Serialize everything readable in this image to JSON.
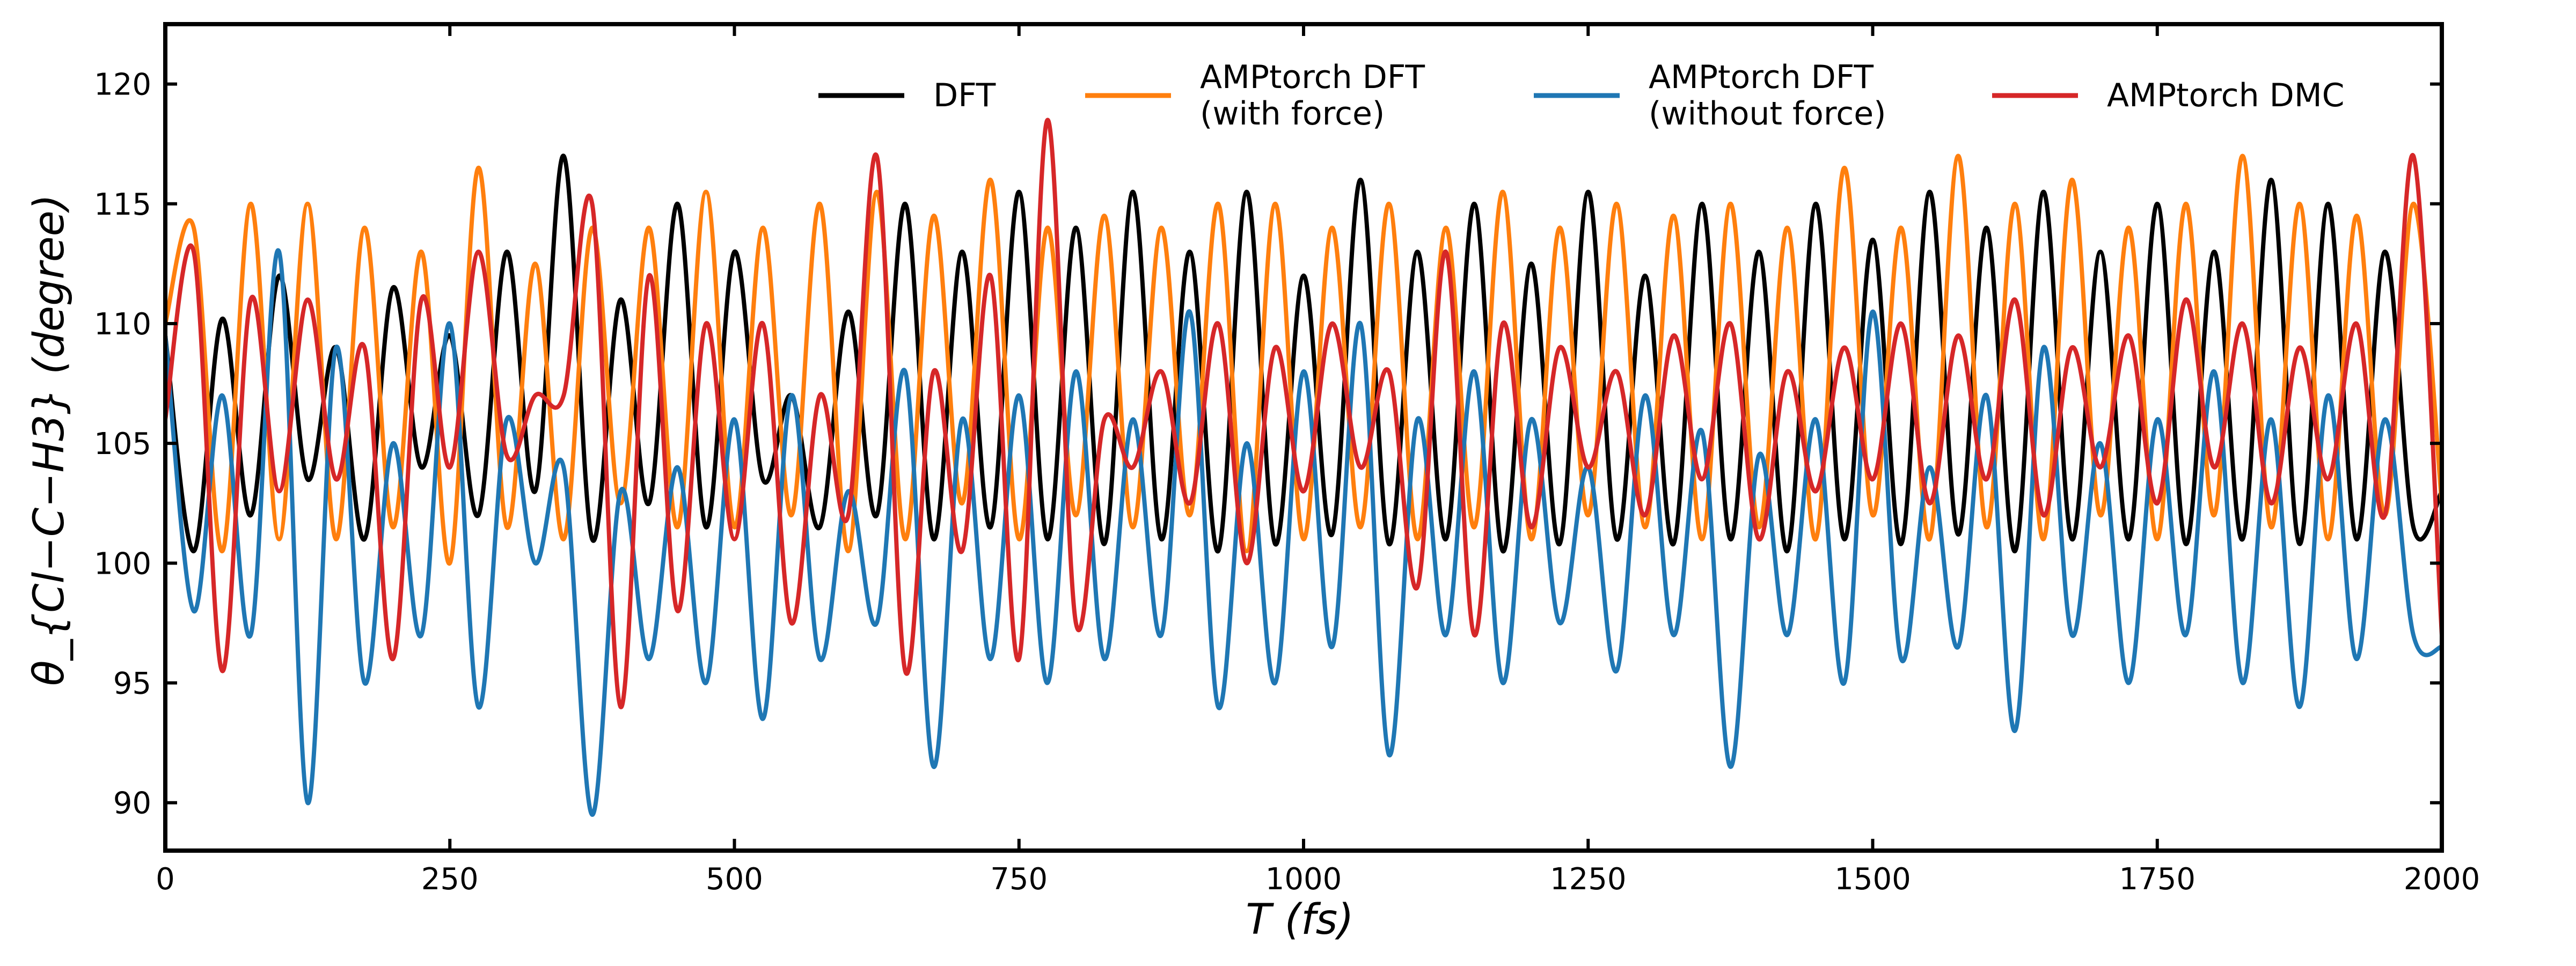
{
  "chart_data": {
    "type": "line",
    "xlabel": "T (fs)",
    "ylabel": "θ_{Cl−C−H3} (degree)",
    "xlim": [
      0,
      2000
    ],
    "ylim": [
      88,
      122.5
    ],
    "xticks": [
      0,
      250,
      500,
      750,
      1000,
      1250,
      1500,
      1750,
      2000
    ],
    "yticks": [
      90,
      95,
      100,
      105,
      110,
      115,
      120
    ],
    "grid": false,
    "legend": {
      "position": "top-right",
      "columns": 4,
      "entries": [
        {
          "lines": [
            "DFT"
          ],
          "color": "#000000"
        },
        {
          "lines": [
            "AMPtorch DFT",
            "(with force)"
          ],
          "color": "#ff7f0e"
        },
        {
          "lines": [
            "AMPtorch DFT",
            "(without force)"
          ],
          "color": "#1f77b4"
        },
        {
          "lines": [
            "AMPtorch DMC"
          ],
          "color": "#d62728"
        }
      ]
    },
    "series": [
      {
        "name": "DFT",
        "color": "#000000",
        "x": [
          0,
          25,
          50,
          75,
          100,
          125,
          150,
          175,
          200,
          225,
          250,
          275,
          300,
          325,
          350,
          375,
          400,
          425,
          450,
          475,
          500,
          525,
          550,
          575,
          600,
          625,
          650,
          675,
          700,
          725,
          750,
          775,
          800,
          825,
          850,
          875,
          900,
          925,
          950,
          975,
          1000,
          1025,
          1050,
          1075,
          1100,
          1125,
          1150,
          1175,
          1200,
          1225,
          1250,
          1275,
          1300,
          1325,
          1350,
          1375,
          1400,
          1425,
          1450,
          1475,
          1500,
          1525,
          1550,
          1575,
          1600,
          1625,
          1650,
          1675,
          1700,
          1725,
          1750,
          1775,
          1800,
          1825,
          1850,
          1875,
          1900,
          1925,
          1950,
          1975,
          2000
        ],
        "y": [
          109.5,
          100.5,
          110.2,
          102.0,
          112.0,
          103.5,
          109.0,
          101.0,
          111.5,
          104.0,
          109.5,
          102.0,
          113.0,
          103.0,
          117.0,
          101.0,
          111.0,
          102.5,
          115.0,
          101.5,
          113.0,
          103.5,
          107.0,
          101.5,
          110.5,
          102.0,
          115.0,
          101.0,
          113.0,
          101.5,
          115.5,
          101.0,
          114.0,
          100.8,
          115.5,
          101.0,
          113.0,
          100.5,
          115.5,
          100.8,
          112.0,
          101.2,
          116.0,
          100.8,
          113.0,
          101.0,
          115.0,
          100.5,
          112.5,
          100.8,
          115.5,
          101.0,
          112.0,
          100.8,
          115.0,
          101.0,
          113.0,
          100.5,
          115.0,
          101.0,
          113.5,
          100.8,
          115.5,
          101.2,
          114.0,
          100.5,
          115.5,
          101.0,
          113.0,
          101.0,
          115.0,
          100.8,
          113.0,
          101.0,
          116.0,
          100.8,
          115.0,
          101.0,
          113.0,
          101.5,
          103.0
        ]
      },
      {
        "name": "AMPtorch DFT (with force)",
        "color": "#ff7f0e",
        "x": [
          0,
          25,
          50,
          75,
          100,
          125,
          150,
          175,
          200,
          225,
          250,
          275,
          300,
          325,
          350,
          375,
          400,
          425,
          450,
          475,
          500,
          525,
          550,
          575,
          600,
          625,
          650,
          675,
          700,
          725,
          750,
          775,
          800,
          825,
          850,
          875,
          900,
          925,
          950,
          975,
          1000,
          1025,
          1050,
          1075,
          1100,
          1125,
          1150,
          1175,
          1200,
          1225,
          1250,
          1275,
          1300,
          1325,
          1350,
          1375,
          1400,
          1425,
          1450,
          1475,
          1500,
          1525,
          1550,
          1575,
          1600,
          1625,
          1650,
          1675,
          1700,
          1725,
          1750,
          1775,
          1800,
          1825,
          1850,
          1875,
          1900,
          1925,
          1950,
          1975,
          2000
        ],
        "y": [
          110.0,
          114.0,
          100.5,
          115.0,
          101.0,
          115.0,
          101.0,
          114.0,
          101.5,
          113.0,
          100.0,
          116.5,
          101.5,
          112.5,
          101.0,
          114.0,
          102.5,
          114.0,
          101.5,
          115.5,
          101.5,
          114.0,
          102.0,
          115.0,
          100.5,
          115.5,
          101.0,
          114.5,
          102.5,
          116.0,
          101.0,
          114.0,
          102.0,
          114.5,
          101.5,
          114.0,
          102.0,
          115.0,
          100.5,
          115.0,
          101.0,
          114.0,
          101.5,
          115.0,
          101.0,
          114.0,
          101.5,
          115.5,
          101.0,
          114.0,
          102.0,
          115.0,
          101.5,
          114.5,
          101.0,
          115.0,
          101.5,
          114.0,
          101.0,
          116.5,
          102.0,
          114.0,
          101.0,
          117.0,
          101.5,
          115.0,
          101.0,
          116.0,
          102.0,
          114.0,
          101.0,
          115.0,
          102.0,
          117.0,
          101.5,
          115.0,
          101.0,
          114.5,
          102.0,
          115.0,
          102.5
        ]
      },
      {
        "name": "AMPtorch DFT (without force)",
        "color": "#1f77b4",
        "x": [
          0,
          25,
          50,
          75,
          100,
          125,
          150,
          175,
          200,
          225,
          250,
          275,
          300,
          325,
          350,
          375,
          400,
          425,
          450,
          475,
          500,
          525,
          550,
          575,
          600,
          625,
          650,
          675,
          700,
          725,
          750,
          775,
          800,
          825,
          850,
          875,
          900,
          925,
          950,
          975,
          1000,
          1025,
          1050,
          1075,
          1100,
          1125,
          1150,
          1175,
          1200,
          1225,
          1250,
          1275,
          1300,
          1325,
          1350,
          1375,
          1400,
          1425,
          1450,
          1475,
          1500,
          1525,
          1550,
          1575,
          1600,
          1625,
          1650,
          1675,
          1700,
          1725,
          1750,
          1775,
          1800,
          1825,
          1850,
          1875,
          1900,
          1925,
          1950,
          1975,
          2000
        ],
        "y": [
          109.5,
          98.0,
          107.0,
          97.0,
          113.0,
          90.0,
          109.0,
          95.0,
          105.0,
          97.0,
          110.0,
          94.0,
          106.0,
          100.0,
          104.0,
          89.5,
          103.0,
          96.0,
          104.0,
          95.0,
          106.0,
          93.5,
          107.0,
          96.0,
          103.0,
          97.5,
          108.0,
          91.5,
          106.0,
          96.0,
          107.0,
          95.0,
          108.0,
          96.0,
          106.0,
          97.0,
          110.5,
          94.0,
          105.0,
          95.0,
          108.0,
          96.5,
          110.0,
          92.0,
          106.0,
          97.0,
          108.0,
          95.0,
          106.0,
          97.5,
          104.0,
          95.5,
          107.0,
          97.0,
          105.5,
          91.5,
          104.5,
          97.0,
          106.0,
          95.0,
          110.5,
          96.0,
          104.0,
          96.5,
          107.0,
          93.0,
          109.0,
          97.0,
          105.0,
          95.0,
          106.0,
          97.0,
          108.0,
          95.0,
          106.0,
          94.0,
          107.0,
          96.0,
          106.0,
          97.0,
          96.5
        ]
      },
      {
        "name": "AMPtorch DMC",
        "color": "#d62728",
        "x": [
          0,
          25,
          50,
          75,
          100,
          125,
          150,
          175,
          200,
          225,
          250,
          275,
          300,
          325,
          350,
          375,
          400,
          425,
          450,
          475,
          500,
          525,
          550,
          575,
          600,
          625,
          650,
          675,
          700,
          725,
          750,
          775,
          800,
          825,
          850,
          875,
          900,
          925,
          950,
          975,
          1000,
          1025,
          1050,
          1075,
          1100,
          1125,
          1150,
          1175,
          1200,
          1225,
          1250,
          1275,
          1300,
          1325,
          1350,
          1375,
          1400,
          1425,
          1450,
          1475,
          1500,
          1525,
          1550,
          1575,
          1600,
          1625,
          1650,
          1675,
          1700,
          1725,
          1750,
          1775,
          1800,
          1825,
          1850,
          1875,
          1900,
          1925,
          1950,
          1975,
          2000
        ],
        "y": [
          106.0,
          113.0,
          95.5,
          111.0,
          103.0,
          111.0,
          103.5,
          109.0,
          96.0,
          111.0,
          104.0,
          113.0,
          104.5,
          107.0,
          107.0,
          115.0,
          94.0,
          112.0,
          98.0,
          110.0,
          101.0,
          110.0,
          97.5,
          107.0,
          102.0,
          117.0,
          95.5,
          108.0,
          100.5,
          112.0,
          96.0,
          118.5,
          97.5,
          106.0,
          104.0,
          108.0,
          102.5,
          110.0,
          100.0,
          109.0,
          103.0,
          110.0,
          104.0,
          108.0,
          99.0,
          113.0,
          97.0,
          110.0,
          101.5,
          109.0,
          104.0,
          108.0,
          102.0,
          109.5,
          103.5,
          110.0,
          101.0,
          108.0,
          103.0,
          109.0,
          103.5,
          110.0,
          102.5,
          109.5,
          103.5,
          111.0,
          102.0,
          109.0,
          104.0,
          109.5,
          102.5,
          111.0,
          104.0,
          110.0,
          102.5,
          109.0,
          103.5,
          110.0,
          102.0,
          117.0,
          97.0
        ]
      }
    ]
  }
}
